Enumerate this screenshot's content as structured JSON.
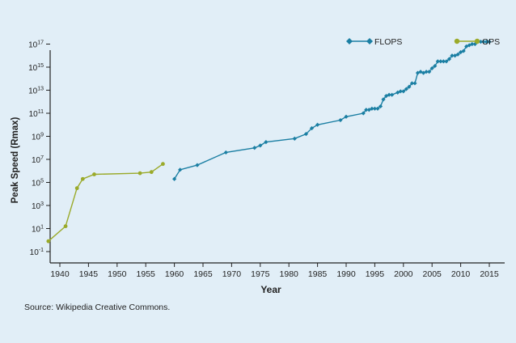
{
  "chart_data": {
    "type": "line",
    "xlabel": "Year",
    "ylabel": "Peak Speed (Rmax)",
    "xlim": [
      1936,
      2018
    ],
    "ylim": [
      -1,
      17
    ],
    "yscale": "log10",
    "grid": false,
    "legend": "top-right",
    "x_ticks": [
      "1940",
      "1945",
      "1950",
      "1955",
      "1960",
      "1965",
      "1970",
      "1975",
      "1980",
      "1985",
      "1990",
      "1995",
      "2000",
      "2005",
      "2010",
      "2015"
    ],
    "y_ticks": [
      {
        "base": "10",
        "exp": "17"
      },
      {
        "base": "10",
        "exp": "15"
      },
      {
        "base": "10",
        "exp": "13"
      },
      {
        "base": "10",
        "exp": "11"
      },
      {
        "base": "10",
        "exp": "9"
      },
      {
        "base": "10",
        "exp": "7"
      },
      {
        "base": "10",
        "exp": "5"
      },
      {
        "base": "10",
        "exp": "3"
      },
      {
        "base": "10",
        "exp": "1"
      },
      {
        "base": "10",
        "exp": "-1"
      }
    ],
    "series": [
      {
        "name": "OPS",
        "color": "#9aaa2a",
        "marker": "circle",
        "x": [
          1938,
          1941,
          1943,
          1944,
          1946,
          1954,
          1956,
          1958
        ],
        "y": [
          -0.1,
          1.2,
          4.5,
          5.3,
          5.7,
          5.8,
          5.9,
          6.6
        ]
      },
      {
        "name": "FLOPS",
        "color": "#1b7fa3",
        "marker": "diamond",
        "x": [
          1960,
          1961,
          1964,
          1969,
          1974,
          1975,
          1976,
          1981,
          1983,
          1984,
          1985,
          1989,
          1990,
          1993,
          1993.5,
          1994,
          1994.5,
          1995,
          1995.5,
          1996,
          1996.5,
          1997,
          1997.5,
          1998,
          1999,
          1999.5,
          2000,
          2000.5,
          2001,
          2001.5,
          2002,
          2002.5,
          2003,
          2003.5,
          2004,
          2004.5,
          2005,
          2005.5,
          2006,
          2006.5,
          2007,
          2007.5,
          2008,
          2008.5,
          2009,
          2009.5,
          2010,
          2010.5,
          2011,
          2011.5,
          2012,
          2012.5,
          2013,
          2013.5,
          2014,
          2014.5,
          2015
        ],
        "y": [
          5.3,
          6.1,
          6.5,
          7.6,
          8.0,
          8.2,
          8.5,
          8.8,
          9.2,
          9.7,
          10.0,
          10.4,
          10.7,
          11.0,
          11.3,
          11.3,
          11.4,
          11.4,
          11.4,
          11.6,
          12.2,
          12.5,
          12.6,
          12.6,
          12.8,
          12.9,
          12.9,
          13.1,
          13.3,
          13.6,
          13.6,
          14.5,
          14.6,
          14.5,
          14.6,
          14.6,
          14.9,
          15.1,
          15.5,
          15.5,
          15.5,
          15.5,
          15.7,
          16.0,
          16.0,
          16.1,
          16.3,
          16.4,
          16.8,
          16.9,
          17.0,
          17.0,
          17.2,
          17.2,
          17.2,
          17.2,
          17.2
        ]
      }
    ]
  },
  "source_note": "Source: Wikipedia Creative Commons."
}
